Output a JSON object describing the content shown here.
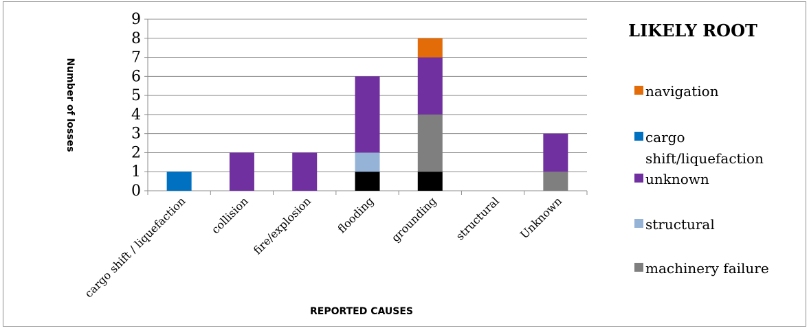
{
  "chart_data": {
    "type": "bar",
    "stacked": true,
    "xlabel": "REPORTED CAUSES",
    "ylabel": "Number of losses",
    "ylim": [
      0,
      9
    ],
    "yticks": [
      "0",
      "1",
      "2",
      "3",
      "4",
      "5",
      "6",
      "7",
      "8",
      "9"
    ],
    "grid": true,
    "legend_placement": "right",
    "legend_title": "LIKELY ROOT",
    "categories": [
      "cargo shift / liquefaction",
      "collision",
      "fire/explosion",
      "flooding",
      "grounding",
      "structural",
      "Unknown"
    ],
    "series": [
      {
        "key": "black",
        "color": "#000000",
        "values": [
          0,
          0,
          0,
          1,
          1,
          0,
          0
        ]
      },
      {
        "key": "machinery_failure",
        "name": "machinery failure",
        "color": "#7f7f7f",
        "values": [
          0,
          0,
          0,
          0,
          3,
          0,
          1
        ]
      },
      {
        "key": "structural",
        "name": "structural",
        "color": "#95b3d7",
        "values": [
          0,
          0,
          0,
          1,
          0,
          0,
          0
        ]
      },
      {
        "key": "unknown",
        "name": "unknown",
        "color": "#7030a0",
        "values": [
          0,
          2,
          2,
          4,
          3,
          0,
          2
        ]
      },
      {
        "key": "cargo_shift",
        "name": "cargo shift/liquefaction",
        "color": "#0070c0",
        "values": [
          1,
          0,
          0,
          0,
          0,
          0,
          0
        ]
      },
      {
        "key": "navigation",
        "name": "navigation",
        "color": "#e36c09",
        "values": [
          0,
          0,
          0,
          0,
          1,
          0,
          0
        ]
      }
    ],
    "legend_order": [
      "navigation",
      "cargo_shift",
      "unknown",
      "structural",
      "machinery_failure"
    ],
    "legend_labels": {
      "navigation": [
        "navigation"
      ],
      "cargo_shift": [
        "cargo",
        "shift/liquefaction"
      ],
      "unknown": [
        "unknown"
      ],
      "structural": [
        "structural"
      ],
      "machinery_failure": [
        "machinery failure"
      ]
    }
  }
}
